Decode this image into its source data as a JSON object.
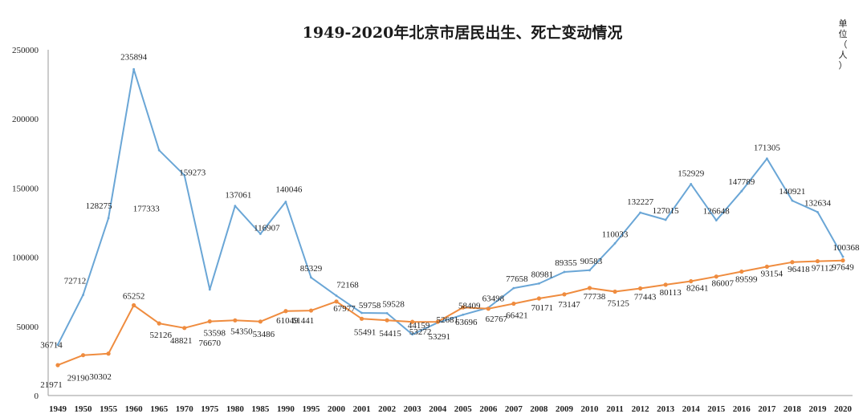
{
  "chart_data": {
    "type": "line",
    "title": "1949-2020年北京市居民出生、死亡变动情况",
    "unit_label": "单位（人）",
    "xlabel": "",
    "ylabel": "",
    "ylim": [
      0,
      250000
    ],
    "y_ticks": [
      "0",
      "50000",
      "100000",
      "150000",
      "200000",
      "250000"
    ],
    "categories": [
      "1949",
      "1950",
      "1955",
      "1960",
      "1965",
      "1970",
      "1975",
      "1980",
      "1985",
      "1990",
      "1995",
      "2000",
      "2001",
      "2002",
      "2003",
      "2004",
      "2005",
      "2006",
      "2007",
      "2008",
      "2009",
      "2010",
      "2011",
      "2012",
      "2013",
      "2014",
      "2015",
      "2016",
      "2017",
      "2018",
      "2019",
      "2020"
    ],
    "grid": false,
    "legend": "none",
    "series": [
      {
        "color": "#6aa6d6",
        "values": [
          36714,
          72712,
          128275,
          235894,
          177333,
          159273,
          76670,
          137061,
          116907,
          140046,
          85329,
          72168,
          59758,
          59528,
          44159,
          52681,
          58409,
          63498,
          77658,
          80981,
          89355,
          90583,
          110033,
          132227,
          127015,
          152929,
          126648,
          147789,
          171305,
          140921,
          132634,
          100368
        ]
      },
      {
        "color": "#ef8c3f",
        "values": [
          21971,
          29190,
          30302,
          65252,
          52126,
          48821,
          53598,
          54350,
          53486,
          61049,
          61441,
          67977,
          55491,
          54415,
          53272,
          53291,
          63696,
          62767,
          66421,
          70171,
          73147,
          77738,
          75125,
          77443,
          80113,
          82641,
          86007,
          89599,
          93154,
          96418,
          97112,
          97649
        ]
      }
    ]
  }
}
